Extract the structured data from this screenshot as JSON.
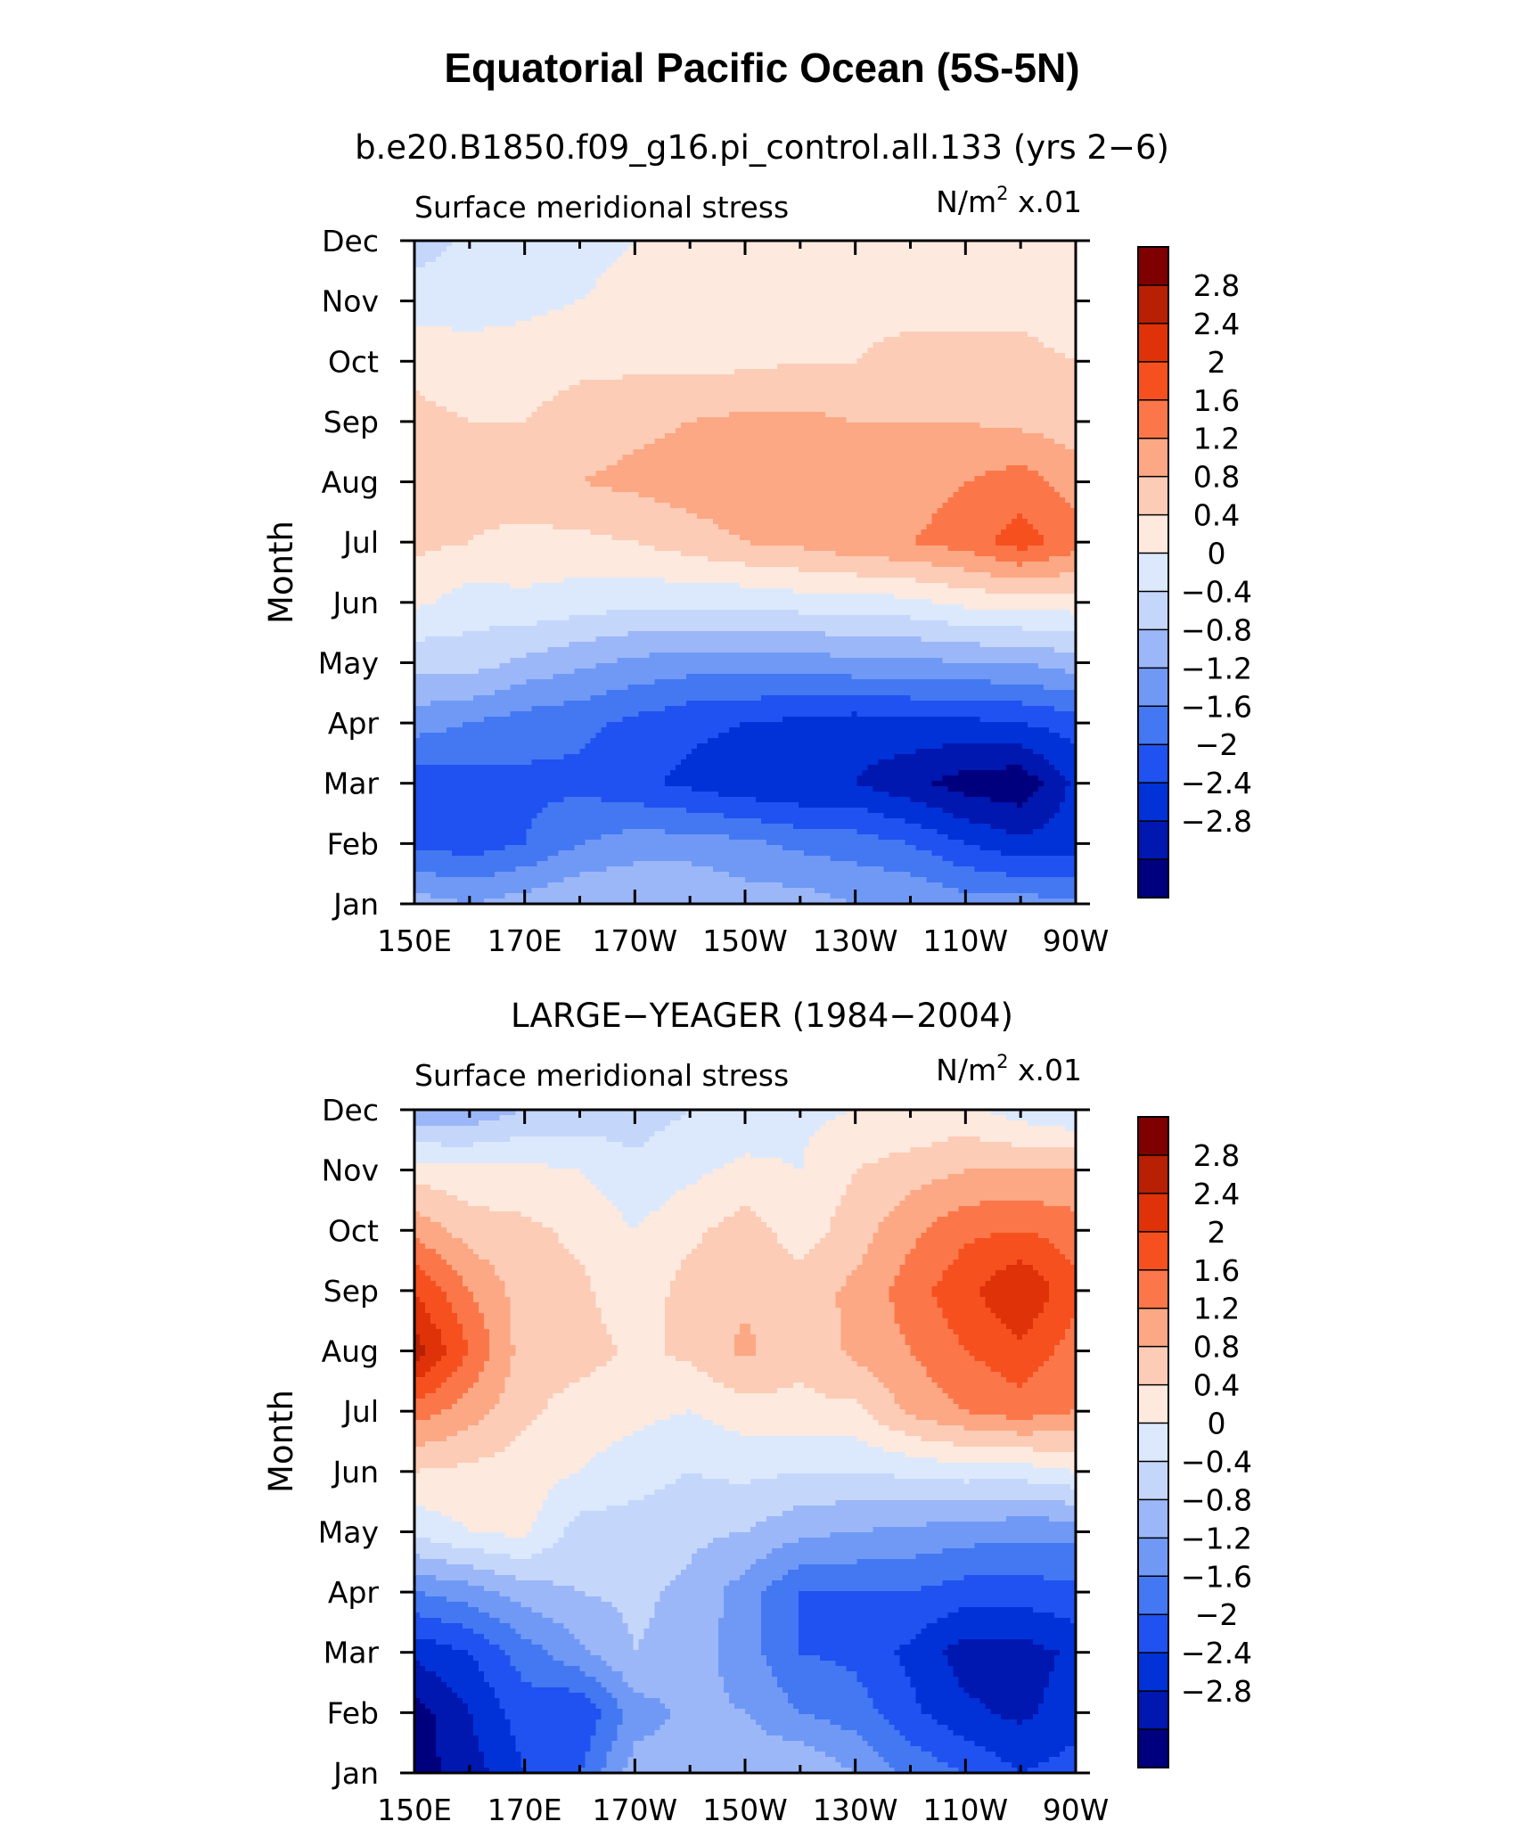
{
  "figure": {
    "title": "Equatorial Pacific Ocean (5S-5N)"
  },
  "chart_data": [
    {
      "type": "heatmap",
      "panel_title": "b.e20.B1850.f09_g16.pi_control.all.133 (yrs 2−6)",
      "left_label": "Surface meridional stress",
      "units_prefix": "N/m",
      "units_exp": "2",
      "units_suffix": " x.01",
      "ylabel": "Month",
      "xlabel": "",
      "x": [
        "150E",
        "170E",
        "170W",
        "150W",
        "130W",
        "110W",
        "90W"
      ],
      "x_values": [
        150,
        170,
        190,
        210,
        230,
        250,
        270
      ],
      "y": [
        "Jan",
        "Feb",
        "Mar",
        "Apr",
        "May",
        "Jun",
        "Jul",
        "Aug",
        "Sep",
        "Oct",
        "Nov",
        "Dec"
      ],
      "grid": [
        [
          -0.6,
          -0.8,
          -0.6,
          -0.4,
          -0.4,
          -0.4,
          -0.6,
          -0.6,
          -0.8,
          -0.8,
          -1.0,
          -1.0,
          -1.1
        ],
        [
          -1.7,
          -1.8,
          -1.6,
          -1.2,
          -1.0,
          -1.0,
          -1.1,
          -1.3,
          -1.4,
          -1.6,
          -2.0,
          -2.3,
          -2.2
        ],
        [
          -1.9,
          -1.8,
          -1.7,
          -1.7,
          -1.9,
          -2.1,
          -2.3,
          -2.4,
          -2.4,
          -2.7,
          -3.0,
          -3.1,
          -2.3
        ],
        [
          -1.0,
          -1.2,
          -1.4,
          -1.5,
          -1.7,
          -1.9,
          -2.0,
          -2.1,
          -2.2,
          -2.1,
          -2.1,
          -2.0,
          -1.8
        ],
        [
          -0.3,
          -0.2,
          -0.5,
          -0.7,
          -0.9,
          -1.0,
          -1.0,
          -1.0,
          -0.9,
          -0.9,
          -0.8,
          -0.8,
          -0.6
        ],
        [
          0.5,
          0.2,
          0.3,
          0.2,
          0.1,
          0.1,
          0.1,
          0.2,
          0.2,
          0.3,
          0.5,
          0.6,
          0.6
        ],
        [
          0.9,
          0.8,
          0.7,
          0.7,
          0.8,
          1.0,
          1.2,
          1.3,
          1.5,
          1.6,
          1.8,
          2.2,
          1.8
        ],
        [
          1.1,
          0.9,
          1.0,
          1.2,
          1.3,
          1.4,
          1.5,
          1.5,
          1.4,
          1.4,
          1.6,
          1.8,
          1.4
        ],
        [
          0.9,
          0.8,
          0.8,
          1.0,
          1.1,
          1.2,
          1.3,
          1.3,
          1.2,
          1.2,
          1.2,
          1.1,
          1.0
        ],
        [
          0.7,
          0.6,
          0.6,
          0.7,
          0.7,
          0.7,
          0.7,
          0.8,
          0.8,
          0.9,
          0.9,
          0.9,
          0.8
        ],
        [
          0.2,
          0.2,
          0.3,
          0.4,
          0.5,
          0.6,
          0.6,
          0.7,
          0.7,
          0.7,
          0.7,
          0.7,
          0.6
        ],
        [
          -0.2,
          0.1,
          0.3,
          0.3,
          0.4,
          0.4,
          0.5,
          0.5,
          0.6,
          0.6,
          0.6,
          0.5,
          0.5
        ]
      ]
    },
    {
      "type": "heatmap",
      "panel_title": "LARGE−YEAGER (1984−2004)",
      "left_label": "Surface meridional stress",
      "units_prefix": "N/m",
      "units_exp": "2",
      "units_suffix": " x.01",
      "ylabel": "Month",
      "xlabel": "",
      "x": [
        "150E",
        "170E",
        "170W",
        "150W",
        "130W",
        "110W",
        "90W"
      ],
      "x_values": [
        150,
        170,
        190,
        210,
        230,
        250,
        270
      ],
      "y": [
        "Jan",
        "Feb",
        "Mar",
        "Apr",
        "May",
        "Jun",
        "Jul",
        "Aug",
        "Sep",
        "Oct",
        "Nov",
        "Dec"
      ],
      "grid": [
        [
          -3.0,
          -2.6,
          -2.0,
          -1.6,
          -0.6,
          -0.6,
          -0.5,
          -0.4,
          -0.8,
          -1.3,
          -1.6,
          -2.0,
          -1.8
        ],
        [
          -3.0,
          -2.4,
          -1.8,
          -2.0,
          -1.0,
          -0.7,
          -0.8,
          -1.2,
          -1.4,
          -1.9,
          -2.3,
          -2.5,
          -2.2
        ],
        [
          -2.3,
          -2.0,
          -1.4,
          -0.9,
          -0.4,
          -0.6,
          -1.0,
          -1.6,
          -1.7,
          -2.1,
          -2.6,
          -2.6,
          -2.3
        ],
        [
          -1.2,
          -1.0,
          -0.6,
          -0.4,
          -0.3,
          -0.5,
          -1.0,
          -1.6,
          -1.6,
          -1.6,
          -1.8,
          -1.8,
          -1.7
        ],
        [
          0.1,
          0.4,
          0.5,
          -0.2,
          -0.2,
          -0.3,
          -0.4,
          -0.7,
          -0.8,
          -0.9,
          -1.0,
          -1.1,
          -1.1
        ],
        [
          0.8,
          0.7,
          0.6,
          0.4,
          0.2,
          0.0,
          0.1,
          0.0,
          0.0,
          0.1,
          0.2,
          0.2,
          0.4
        ],
        [
          1.8,
          1.4,
          0.9,
          0.6,
          0.5,
          0.4,
          0.6,
          0.7,
          0.7,
          1.3,
          1.6,
          1.8,
          1.6
        ],
        [
          3.0,
          2.0,
          1.0,
          1.0,
          0.7,
          0.9,
          1.3,
          0.9,
          1.3,
          1.6,
          2.0,
          2.3,
          1.8
        ],
        [
          2.4,
          1.6,
          1.0,
          0.9,
          0.5,
          1.0,
          1.1,
          1.0,
          1.3,
          1.8,
          2.3,
          2.8,
          2.1
        ],
        [
          1.5,
          1.0,
          0.9,
          0.7,
          0.4,
          0.7,
          1.0,
          0.6,
          1.0,
          1.5,
          1.9,
          2.0,
          1.8
        ],
        [
          0.6,
          0.5,
          0.5,
          0.4,
          0.1,
          0.3,
          0.5,
          0.4,
          0.8,
          1.0,
          1.2,
          1.2,
          1.2
        ],
        [
          -0.8,
          -0.7,
          -0.4,
          -0.3,
          -0.2,
          0.0,
          0.1,
          0.3,
          0.4,
          0.4,
          0.5,
          0.2,
          0.0
        ]
      ]
    }
  ],
  "colorbar": {
    "levels": [
      -3.2,
      -2.8,
      -2.4,
      -2.0,
      -1.6,
      -1.2,
      -0.8,
      -0.4,
      0,
      0.4,
      0.8,
      1.2,
      1.6,
      2.0,
      2.4,
      2.8,
      3.2
    ],
    "colors": [
      "#00007f",
      "#0017b0",
      "#0032d8",
      "#1f52f0",
      "#4378f2",
      "#7099f6",
      "#9bb7f8",
      "#c5d6fb",
      "#dce9fd",
      "#fde9de",
      "#fcccb6",
      "#fca884",
      "#fb774a",
      "#f7501f",
      "#e03208",
      "#b82003",
      "#7f0000"
    ],
    "labels": [
      "2.8",
      "2.4",
      "2",
      "1.6",
      "1.2",
      "0.8",
      "0.4",
      "0",
      "−0.4",
      "−0.8",
      "−1.2",
      "−1.6",
      "−2",
      "−2.4",
      "−2.8"
    ]
  }
}
